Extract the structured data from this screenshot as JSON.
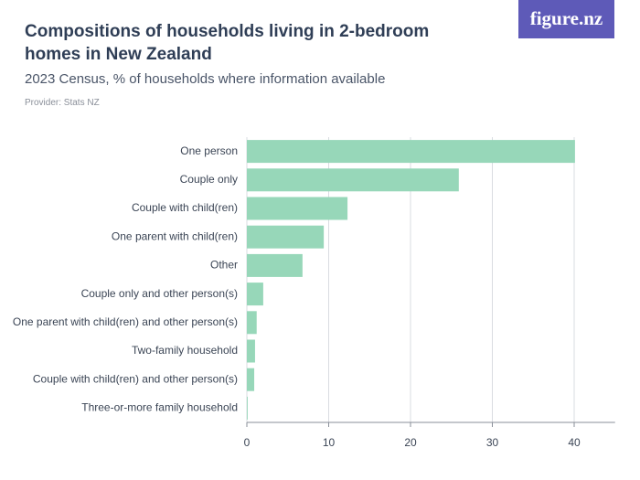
{
  "logo": "figure.nz",
  "chart_data": {
    "type": "bar",
    "orientation": "horizontal",
    "title": "Compositions of households living in 2-bedroom homes in New Zealand",
    "subtitle": "2023 Census, % of households where information available",
    "provider": "Provider: Stats NZ",
    "categories": [
      "One person",
      "Couple only",
      "Couple with child(ren)",
      "One parent with child(ren)",
      "Other",
      "Couple only and other person(s)",
      "One parent with child(ren) and other person(s)",
      "Two-family household",
      "Couple with child(ren) and other person(s)",
      "Three-or-more family household"
    ],
    "values": [
      40.1,
      25.9,
      12.3,
      9.4,
      6.8,
      2.0,
      1.2,
      1.0,
      0.9,
      0.1
    ],
    "color": "#97d7b9",
    "xlim": [
      0,
      45
    ],
    "xticks": [
      0,
      10,
      20,
      30,
      40
    ],
    "grid": true
  }
}
